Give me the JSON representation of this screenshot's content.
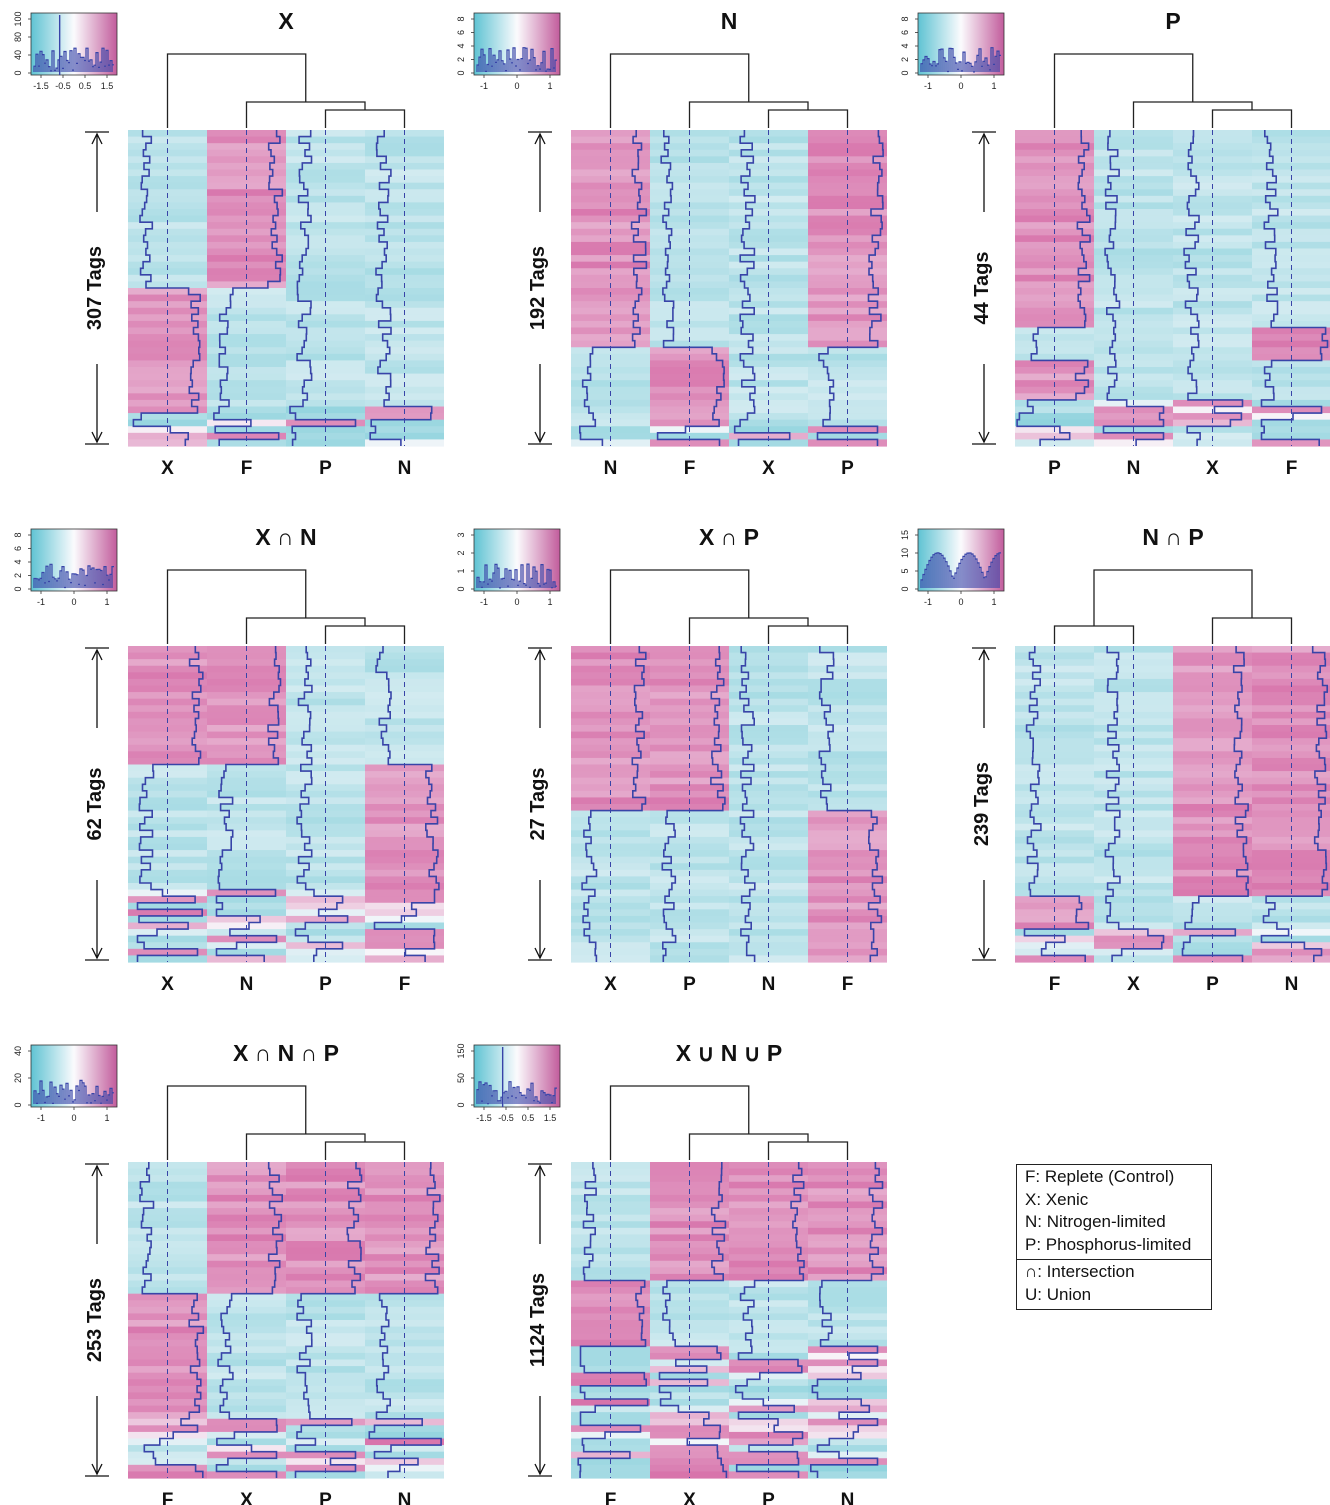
{
  "colors": {
    "low": "#8fd3dd",
    "mid": "#f8f8fb",
    "high": "#d772aa",
    "trace": "#3844a8",
    "dendrogram": "#222222"
  },
  "chart_data": [
    {
      "type": "heatmap",
      "title": "X",
      "columns": [
        "X",
        "F",
        "P",
        "N"
      ],
      "tag_label": "307 Tags",
      "blocks": [
        {
          "from": 0.0,
          "to": 0.49,
          "high": [
            "F"
          ]
        },
        {
          "from": 0.49,
          "to": 0.87,
          "high": [
            "X"
          ]
        }
      ],
      "dendrogram": [
        [
          2,
          3
        ],
        [
          1,
          "c0"
        ],
        [
          0,
          "c1"
        ]
      ],
      "histogram": {
        "yticks": [
          "0",
          "40",
          "80",
          "100"
        ],
        "xticks": [
          "-1.5",
          "-0.5",
          "0.5",
          "1.5"
        ],
        "peak_x": -0.5
      }
    },
    {
      "type": "heatmap",
      "title": "N",
      "columns": [
        "N",
        "F",
        "X",
        "P"
      ],
      "tag_label": "192 Tags",
      "blocks": [
        {
          "from": 0.0,
          "to": 0.68,
          "high": [
            "N",
            "P"
          ]
        },
        {
          "from": 0.68,
          "to": 0.93,
          "high": [
            "F"
          ]
        }
      ],
      "dendrogram": [
        [
          2,
          3
        ],
        [
          1,
          "c0"
        ],
        [
          0,
          "c1"
        ]
      ],
      "histogram": {
        "yticks": [
          "0",
          "2",
          "4",
          "6",
          "8"
        ],
        "xticks": [
          "-1",
          "0",
          "1"
        ]
      }
    },
    {
      "type": "heatmap",
      "title": "P",
      "columns": [
        "P",
        "N",
        "X",
        "F"
      ],
      "tag_label": "44 Tags",
      "blocks": [
        {
          "from": 0.0,
          "to": 0.62,
          "high": [
            "P"
          ]
        },
        {
          "from": 0.62,
          "to": 0.72,
          "high": [
            "F"
          ]
        },
        {
          "from": 0.72,
          "to": 0.85,
          "high": [
            "P"
          ]
        }
      ],
      "dendrogram": [
        [
          2,
          3
        ],
        [
          1,
          "c0"
        ],
        [
          0,
          "c1"
        ]
      ],
      "histogram": {
        "yticks": [
          "0",
          "2",
          "4",
          "6",
          "8"
        ],
        "xticks": [
          "-1",
          "0",
          "1"
        ]
      }
    },
    {
      "type": "heatmap",
      "title": "X ∩ N",
      "columns": [
        "X",
        "N",
        "P",
        "F"
      ],
      "tag_label": "62 Tags",
      "blocks": [
        {
          "from": 0.0,
          "to": 0.37,
          "high": [
            "X",
            "N"
          ]
        },
        {
          "from": 0.37,
          "to": 0.77,
          "high": [
            "F"
          ]
        }
      ],
      "dendrogram": [
        [
          2,
          3
        ],
        [
          1,
          "c0"
        ],
        [
          0,
          "c1"
        ]
      ],
      "histogram": {
        "yticks": [
          "0",
          "2",
          "4",
          "6",
          "8"
        ],
        "xticks": [
          "-1",
          "0",
          "1"
        ]
      }
    },
    {
      "type": "heatmap",
      "title": "X ∩ P",
      "columns": [
        "X",
        "P",
        "N",
        "F"
      ],
      "tag_label": "27 Tags",
      "blocks": [
        {
          "from": 0.0,
          "to": 0.52,
          "high": [
            "X",
            "P"
          ]
        },
        {
          "from": 0.52,
          "to": 1.0,
          "high": [
            "F"
          ]
        }
      ],
      "dendrogram": [
        [
          2,
          3
        ],
        [
          1,
          "c0"
        ],
        [
          0,
          "c1"
        ]
      ],
      "histogram": {
        "yticks": [
          "0",
          "1",
          "2",
          "3"
        ],
        "xticks": [
          "-1",
          "0",
          "1"
        ]
      }
    },
    {
      "type": "heatmap",
      "title": "N ∩ P",
      "columns": [
        "F",
        "X",
        "P",
        "N"
      ],
      "tag_label": "239 Tags",
      "blocks": [
        {
          "from": 0.0,
          "to": 0.78,
          "high": [
            "P",
            "N"
          ]
        },
        {
          "from": 0.78,
          "to": 0.88,
          "high": [
            "F"
          ]
        }
      ],
      "dendrogram": [
        [
          0,
          1
        ],
        [
          2,
          3
        ],
        [
          "c0",
          "c1"
        ]
      ],
      "histogram": {
        "yticks": [
          "0",
          "5",
          "10",
          "15"
        ],
        "xticks": [
          "-1",
          "0",
          "1"
        ]
      }
    },
    {
      "type": "heatmap",
      "title": "X ∩ N ∩ P",
      "columns": [
        "F",
        "X",
        "P",
        "N"
      ],
      "tag_label": "253 Tags",
      "blocks": [
        {
          "from": 0.0,
          "to": 0.4,
          "high": [
            "X",
            "P",
            "N"
          ]
        },
        {
          "from": 0.4,
          "to": 0.8,
          "high": [
            "F"
          ]
        }
      ],
      "dendrogram": [
        [
          2,
          3
        ],
        [
          1,
          "c0"
        ],
        [
          0,
          "c1"
        ]
      ],
      "histogram": {
        "yticks": [
          "0",
          "20",
          "40"
        ],
        "xticks": [
          "-1",
          "0",
          "1"
        ]
      }
    },
    {
      "type": "heatmap",
      "title": "X ∪ N ∪ P",
      "columns": [
        "F",
        "X",
        "P",
        "N"
      ],
      "tag_label": "1124 Tags",
      "blocks": [
        {
          "from": 0.0,
          "to": 0.37,
          "high": [
            "X",
            "P",
            "N"
          ]
        },
        {
          "from": 0.37,
          "to": 0.58,
          "high": [
            "F"
          ]
        }
      ],
      "dendrogram": [
        [
          2,
          3
        ],
        [
          1,
          "c0"
        ],
        [
          0,
          "c1"
        ]
      ],
      "histogram": {
        "yticks": [
          "0",
          "50",
          "150"
        ],
        "xticks": [
          "-1.5",
          "-0.5",
          "0.5",
          "1.5"
        ],
        "peak_x": -0.5
      }
    }
  ],
  "legend": {
    "conditions": [
      "F: Replete (Control)",
      "X: Xenic",
      "N: Nitrogen-limited",
      "P: Phosphorus-limited"
    ],
    "operators": [
      "∩: Intersection",
      "U: Union"
    ]
  }
}
